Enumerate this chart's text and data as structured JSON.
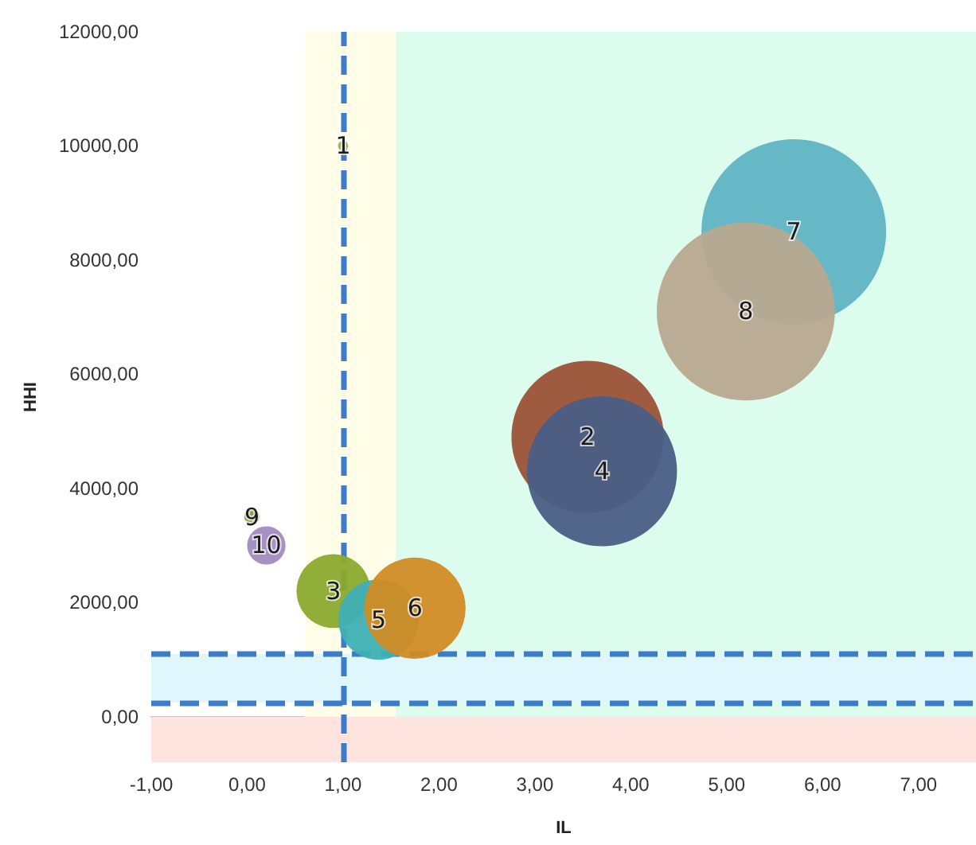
{
  "chart_data": {
    "type": "bubble",
    "xlabel": "IL",
    "ylabel": "HHI",
    "xlim": [
      -1,
      7.6
    ],
    "ylim": [
      -800,
      12000
    ],
    "xticks": [
      {
        "value": -1,
        "label": "-1,00"
      },
      {
        "value": 0,
        "label": "0,00"
      },
      {
        "value": 1,
        "label": "1,00"
      },
      {
        "value": 2,
        "label": "2,00"
      },
      {
        "value": 3,
        "label": "3,00"
      },
      {
        "value": 4,
        "label": "4,00"
      },
      {
        "value": 5,
        "label": "5,00"
      },
      {
        "value": 6,
        "label": "6,00"
      },
      {
        "value": 7,
        "label": "7,00"
      }
    ],
    "yticks": [
      {
        "value": 0,
        "label": "0,00"
      },
      {
        "value": 2000,
        "label": "2000,00"
      },
      {
        "value": 4000,
        "label": "4000,00"
      },
      {
        "value": 6000,
        "label": "6000,00"
      },
      {
        "value": 8000,
        "label": "8000,00"
      },
      {
        "value": 10000,
        "label": "10000,00"
      },
      {
        "value": 12000,
        "label": "12000,00"
      }
    ],
    "grid": false,
    "legend": false,
    "series": [
      {
        "name": "1",
        "color": "#9bb35a",
        "x": [
          1.0
        ],
        "values": [
          10000
        ],
        "sizes": [
          0.003
        ]
      },
      {
        "name": "2",
        "color": "#9b5236",
        "x": [
          3.55
        ],
        "values": [
          4900
        ],
        "sizes": [
          0.68
        ]
      },
      {
        "name": "3",
        "color": "#8aaa2e",
        "x": [
          0.9
        ],
        "values": [
          2200
        ],
        "sizes": [
          0.16
        ]
      },
      {
        "name": "4",
        "color": "#4a5e86",
        "x": [
          3.7
        ],
        "values": [
          4300
        ],
        "sizes": [
          0.66
        ]
      },
      {
        "name": "5",
        "color": "#3fb0b5",
        "x": [
          1.37
        ],
        "values": [
          1700
        ],
        "sizes": [
          0.19
        ]
      },
      {
        "name": "6",
        "color": "#d08c24",
        "x": [
          1.75
        ],
        "values": [
          1900
        ],
        "sizes": [
          0.3
        ]
      },
      {
        "name": "7",
        "color": "#5fb4c4",
        "x": [
          5.7
        ],
        "values": [
          8500
        ],
        "sizes": [
          1
        ]
      },
      {
        "name": "8",
        "color": "#b8a890",
        "x": [
          5.2
        ],
        "values": [
          7100
        ],
        "sizes": [
          0.93
        ]
      },
      {
        "name": "9",
        "color": "#8a9a50",
        "x": [
          0.05
        ],
        "values": [
          3500
        ],
        "sizes": [
          0.007
        ]
      },
      {
        "name": "10",
        "color": "#a08cc0",
        "x": [
          0.2
        ],
        "values": [
          3000
        ],
        "sizes": [
          0.043
        ]
      }
    ],
    "bands": [
      {
        "axis": "x",
        "from": 0.6,
        "to": 1.55,
        "color": "#fffde8"
      },
      {
        "axis": "x",
        "from": 1.55,
        "to": 7.6,
        "color": "#dcfcee"
      },
      {
        "axis": "y",
        "from": -800,
        "to": 0,
        "color": "#ffe3df"
      },
      {
        "axis": "y",
        "from": 250,
        "to": 1100,
        "color": "#dff6fc"
      }
    ],
    "ref_lines": [
      {
        "axis": "x",
        "value": 1,
        "color": "#3d7cc9",
        "line_style": "dashed"
      },
      {
        "axis": "y",
        "value": 1100,
        "color": "#3d7cc9",
        "line_style": "dashed"
      },
      {
        "axis": "y",
        "value": 250,
        "color": "#3d7cc9",
        "line_style": "dashed"
      }
    ]
  }
}
